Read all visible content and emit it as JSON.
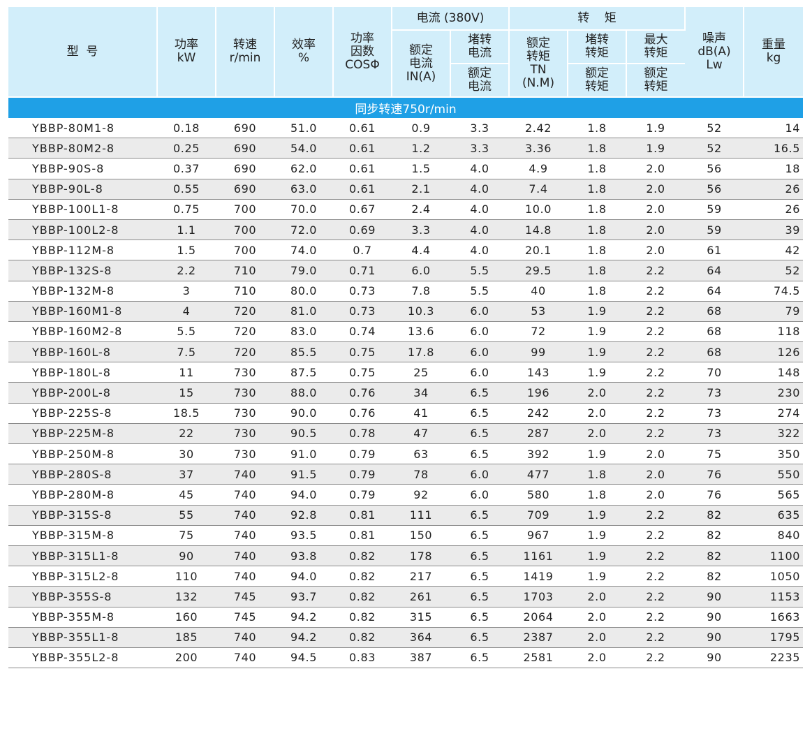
{
  "header": {
    "model": "型  号",
    "power": [
      "功率",
      "kW"
    ],
    "speed": [
      "转速",
      "r/min"
    ],
    "efficiency": [
      "效率",
      "%"
    ],
    "power_factor": [
      "功率",
      "因数",
      "COSΦ"
    ],
    "current_group": "电流 (380V)",
    "rated_current": [
      "额定",
      "电流",
      "IN(A)"
    ],
    "locked_current_top": [
      "堵转",
      "电流"
    ],
    "locked_current_bottom": [
      "额定",
      "电流"
    ],
    "torque_group": "转    矩",
    "rated_torque": [
      "额定",
      "转矩",
      "TN",
      "(N.M)"
    ],
    "locked_torque_top": [
      "堵转",
      "转矩"
    ],
    "locked_torque_bottom": [
      "额定",
      "转矩"
    ],
    "max_torque_top": [
      "最大",
      "转矩"
    ],
    "max_torque_bottom": [
      "额定",
      "转矩"
    ],
    "noise": [
      "噪声",
      "dB(A)",
      "Lw"
    ],
    "weight": [
      "重量",
      "kg"
    ]
  },
  "section_title": "同步转速750r/min",
  "rows": [
    [
      "YBBP-80M1-8",
      "0.18",
      "690",
      "51.0",
      "0.61",
      "0.9",
      "3.3",
      "2.42",
      "1.8",
      "1.9",
      "52",
      "14"
    ],
    [
      "YBBP-80M2-8",
      "0.25",
      "690",
      "54.0",
      "0.61",
      "1.2",
      "3.3",
      "3.36",
      "1.8",
      "1.9",
      "52",
      "16.5"
    ],
    [
      "YBBP-90S-8",
      "0.37",
      "690",
      "62.0",
      "0.61",
      "1.5",
      "4.0",
      "4.9",
      "1.8",
      "2.0",
      "56",
      "18"
    ],
    [
      "YBBP-90L-8",
      "0.55",
      "690",
      "63.0",
      "0.61",
      "2.1",
      "4.0",
      "7.4",
      "1.8",
      "2.0",
      "56",
      "26"
    ],
    [
      "YBBP-100L1-8",
      "0.75",
      "700",
      "70.0",
      "0.67",
      "2.4",
      "4.0",
      "10.0",
      "1.8",
      "2.0",
      "59",
      "26"
    ],
    [
      "YBBP-100L2-8",
      "1.1",
      "700",
      "72.0",
      "0.69",
      "3.3",
      "4.0",
      "14.8",
      "1.8",
      "2.0",
      "59",
      "39"
    ],
    [
      "YBBP-112M-8",
      "1.5",
      "700",
      "74.0",
      "0.7",
      "4.4",
      "4.0",
      "20.1",
      "1.8",
      "2.0",
      "61",
      "42"
    ],
    [
      "YBBP-132S-8",
      "2.2",
      "710",
      "79.0",
      "0.71",
      "6.0",
      "5.5",
      "29.5",
      "1.8",
      "2.2",
      "64",
      "52"
    ],
    [
      "YBBP-132M-8",
      "3",
      "710",
      "80.0",
      "0.73",
      "7.8",
      "5.5",
      "40",
      "1.8",
      "2.2",
      "64",
      "74.5"
    ],
    [
      "YBBP-160M1-8",
      "4",
      "720",
      "81.0",
      "0.73",
      "10.3",
      "6.0",
      "53",
      "1.9",
      "2.2",
      "68",
      "79"
    ],
    [
      "YBBP-160M2-8",
      "5.5",
      "720",
      "83.0",
      "0.74",
      "13.6",
      "6.0",
      "72",
      "1.9",
      "2.2",
      "68",
      "118"
    ],
    [
      "YBBP-160L-8",
      "7.5",
      "720",
      "85.5",
      "0.75",
      "17.8",
      "6.0",
      "99",
      "1.9",
      "2.2",
      "68",
      "126"
    ],
    [
      "YBBP-180L-8",
      "11",
      "730",
      "87.5",
      "0.75",
      "25",
      "6.0",
      "143",
      "1.9",
      "2.2",
      "70",
      "148"
    ],
    [
      "YBBP-200L-8",
      "15",
      "730",
      "88.0",
      "0.76",
      "34",
      "6.5",
      "196",
      "2.0",
      "2.2",
      "73",
      "230"
    ],
    [
      "YBBP-225S-8",
      "18.5",
      "730",
      "90.0",
      "0.76",
      "41",
      "6.5",
      "242",
      "2.0",
      "2.2",
      "73",
      "274"
    ],
    [
      "YBBP-225M-8",
      "22",
      "730",
      "90.5",
      "0.78",
      "47",
      "6.5",
      "287",
      "2.0",
      "2.2",
      "73",
      "322"
    ],
    [
      "YBBP-250M-8",
      "30",
      "730",
      "91.0",
      "0.79",
      "63",
      "6.5",
      "392",
      "1.9",
      "2.0",
      "75",
      "350"
    ],
    [
      "YBBP-280S-8",
      "37",
      "740",
      "91.5",
      "0.79",
      "78",
      "6.0",
      "477",
      "1.8",
      "2.0",
      "76",
      "550"
    ],
    [
      "YBBP-280M-8",
      "45",
      "740",
      "94.0",
      "0.79",
      "92",
      "6.0",
      "580",
      "1.8",
      "2.0",
      "76",
      "565"
    ],
    [
      "YBBP-315S-8",
      "55",
      "740",
      "92.8",
      "0.81",
      "111",
      "6.5",
      "709",
      "1.9",
      "2.2",
      "82",
      "635"
    ],
    [
      "YBBP-315M-8",
      "75",
      "740",
      "93.5",
      "0.81",
      "150",
      "6.5",
      "967",
      "1.9",
      "2.2",
      "82",
      "840"
    ],
    [
      "YBBP-315L1-8",
      "90",
      "740",
      "93.8",
      "0.82",
      "178",
      "6.5",
      "1161",
      "1.9",
      "2.2",
      "82",
      "1100"
    ],
    [
      "YBBP-315L2-8",
      "110",
      "740",
      "94.0",
      "0.82",
      "217",
      "6.5",
      "1419",
      "1.9",
      "2.2",
      "82",
      "1050"
    ],
    [
      "YBBP-355S-8",
      "132",
      "745",
      "93.7",
      "0.82",
      "261",
      "6.5",
      "1703",
      "2.0",
      "2.2",
      "90",
      "1153"
    ],
    [
      "YBBP-355M-8",
      "160",
      "745",
      "94.2",
      "0.82",
      "315",
      "6.5",
      "2064",
      "2.0",
      "2.2",
      "90",
      "1663"
    ],
    [
      "YBBP-355L1-8",
      "185",
      "740",
      "94.2",
      "0.82",
      "364",
      "6.5",
      "2387",
      "2.0",
      "2.2",
      "90",
      "1795"
    ],
    [
      "YBBP-355L2-8",
      "200",
      "740",
      "94.5",
      "0.83",
      "387",
      "6.5",
      "2581",
      "2.0",
      "2.2",
      "90",
      "2235"
    ]
  ]
}
